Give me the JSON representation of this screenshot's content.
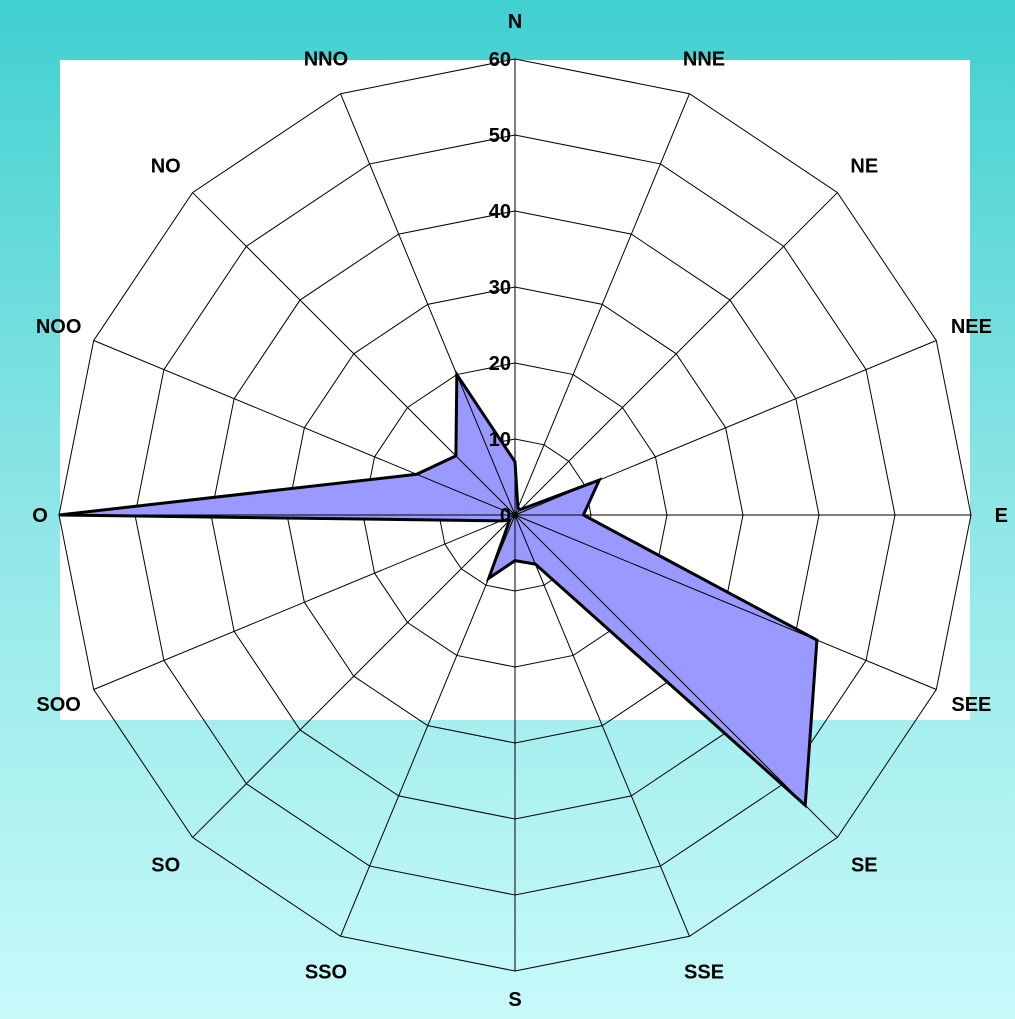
{
  "chart_data": {
    "type": "radar",
    "categories": [
      "N",
      "NNE",
      "NE",
      "NEE",
      "E",
      "SEE",
      "SE",
      "SSE",
      "S",
      "SSO",
      "SO",
      "SOO",
      "O",
      "NOO",
      "NO",
      "NNO"
    ],
    "series": [
      {
        "values": [
          7,
          1,
          1,
          12,
          9,
          43,
          54,
          7,
          6,
          9,
          1,
          2,
          60,
          14,
          11,
          20
        ]
      }
    ],
    "ylim": [
      0,
      60
    ],
    "rticks": [
      0,
      10,
      20,
      30,
      40,
      50,
      60
    ],
    "grid": true,
    "legend": "none",
    "colors": {
      "fill": "#9999ff",
      "line": "#000000",
      "plot_background": "#ffffff"
    }
  }
}
